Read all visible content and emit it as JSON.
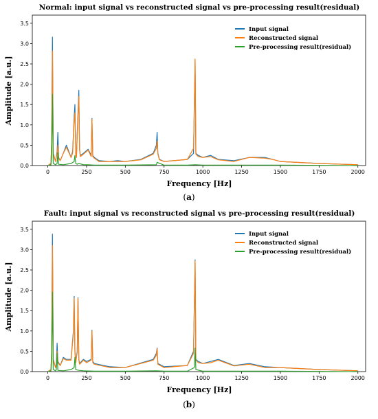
{
  "colors": {
    "input": "#1f77b4",
    "reconstructed": "#ff7f0e",
    "residual": "#2ca02c"
  },
  "chart_data": [
    {
      "type": "line",
      "title": "Normal: input signal vs reconstructed signal vs pre-processing result(residual)",
      "xlabel": "Frequency [Hz]",
      "ylabel": "Amplitude [a.u.]",
      "xlim": [
        -100,
        2050
      ],
      "ylim": [
        0,
        3.7
      ],
      "xticks": [
        0,
        250,
        500,
        750,
        1000,
        1250,
        1500,
        1750,
        2000
      ],
      "yticks": [
        0.0,
        0.5,
        1.0,
        1.5,
        2.0,
        2.5,
        3.0,
        3.5
      ],
      "legend_position": "top-right",
      "caption_letter": "a",
      "series": [
        {
          "name": "Input signal",
          "color": "#1f77b4",
          "x": [
            0,
            20,
            25,
            30,
            35,
            50,
            60,
            65,
            70,
            80,
            100,
            120,
            150,
            160,
            170,
            175,
            180,
            185,
            190,
            200,
            205,
            210,
            230,
            260,
            280,
            285,
            290,
            300,
            330,
            400,
            450,
            500,
            600,
            680,
            700,
            705,
            710,
            720,
            750,
            900,
            940,
            950,
            955,
            970,
            1000,
            1050,
            1100,
            1200,
            1300,
            1400,
            1450,
            1500,
            1750,
            2000
          ],
          "y": [
            0,
            0.05,
            0.6,
            3.16,
            0.3,
            0.1,
            0.35,
            0.82,
            0.2,
            0.12,
            0.3,
            0.5,
            0.2,
            0.35,
            1.2,
            1.5,
            0.3,
            0.2,
            0.8,
            1.85,
            0.4,
            0.25,
            0.3,
            0.4,
            0.25,
            1.16,
            0.25,
            0.2,
            0.12,
            0.1,
            0.12,
            0.1,
            0.15,
            0.3,
            0.5,
            0.82,
            0.3,
            0.15,
            0.1,
            0.15,
            0.3,
            2.6,
            0.3,
            0.25,
            0.2,
            0.25,
            0.15,
            0.12,
            0.2,
            0.2,
            0.15,
            0.1,
            0.05,
            0.02
          ]
        },
        {
          "name": "Reconstructed signal",
          "color": "#ff7f0e",
          "x": [
            0,
            20,
            25,
            30,
            35,
            50,
            60,
            65,
            70,
            80,
            100,
            120,
            150,
            160,
            170,
            175,
            180,
            185,
            190,
            200,
            205,
            210,
            230,
            260,
            280,
            285,
            290,
            300,
            330,
            400,
            450,
            500,
            600,
            680,
            700,
            705,
            710,
            720,
            750,
            900,
            940,
            950,
            955,
            970,
            1000,
            1050,
            1100,
            1200,
            1300,
            1400,
            1450,
            1500,
            1750,
            2000
          ],
          "y": [
            0,
            0.05,
            0.55,
            2.82,
            0.28,
            0.1,
            0.3,
            0.5,
            0.18,
            0.12,
            0.3,
            0.45,
            0.2,
            0.3,
            1.1,
            1.3,
            0.28,
            0.2,
            0.75,
            1.7,
            0.38,
            0.22,
            0.28,
            0.38,
            0.22,
            1.14,
            0.22,
            0.18,
            0.1,
            0.1,
            0.1,
            0.1,
            0.14,
            0.28,
            0.42,
            0.6,
            0.28,
            0.14,
            0.1,
            0.15,
            0.42,
            2.62,
            0.28,
            0.22,
            0.2,
            0.22,
            0.14,
            0.1,
            0.2,
            0.18,
            0.15,
            0.1,
            0.05,
            0.02
          ]
        },
        {
          "name": "Pre-processing result(residual)",
          "color": "#2ca02c",
          "x": [
            0,
            20,
            25,
            30,
            35,
            50,
            60,
            65,
            70,
            100,
            150,
            170,
            175,
            180,
            190,
            200,
            230,
            260,
            300,
            400,
            500,
            700,
            705,
            750,
            900,
            950,
            1000,
            1500,
            2000
          ],
          "y": [
            0,
            0.02,
            0.2,
            1.75,
            0.05,
            0.02,
            0.05,
            0.32,
            0.03,
            0.02,
            0.05,
            0.1,
            0.25,
            0.05,
            0.03,
            0.05,
            0.02,
            0.02,
            0.01,
            0.01,
            0.01,
            0.02,
            0.08,
            0.01,
            0.01,
            0.02,
            0.01,
            0.01,
            0.0
          ]
        }
      ]
    },
    {
      "type": "line",
      "title": "Fault: input signal vs reconstructed signal vs pre-processing result(residual)",
      "xlabel": "Frequency [Hz]",
      "ylabel": "Amplitude [a.u.]",
      "xlim": [
        -100,
        2050
      ],
      "ylim": [
        0,
        3.7
      ],
      "xticks": [
        0,
        250,
        500,
        750,
        1000,
        1250,
        1500,
        1750,
        2000
      ],
      "yticks": [
        0.0,
        0.5,
        1.0,
        1.5,
        2.0,
        2.5,
        3.0,
        3.5
      ],
      "legend_position": "top-right",
      "caption_letter": "b",
      "series": [
        {
          "name": "Input signal",
          "color": "#1f77b4",
          "x": [
            0,
            20,
            25,
            30,
            35,
            50,
            55,
            60,
            65,
            80,
            100,
            120,
            150,
            165,
            170,
            175,
            180,
            190,
            195,
            200,
            205,
            230,
            250,
            280,
            285,
            290,
            300,
            400,
            500,
            680,
            700,
            705,
            710,
            750,
            900,
            940,
            950,
            955,
            970,
            1000,
            1050,
            1100,
            1200,
            1300,
            1400,
            1500,
            1750,
            2000
          ],
          "y": [
            0,
            0.05,
            0.5,
            3.38,
            0.3,
            0.1,
            0.2,
            0.7,
            0.25,
            0.15,
            0.35,
            0.3,
            0.3,
            1.0,
            1.85,
            0.5,
            0.25,
            0.5,
            1.82,
            0.3,
            0.2,
            0.3,
            0.25,
            0.3,
            1.02,
            0.25,
            0.2,
            0.12,
            0.1,
            0.3,
            0.45,
            0.58,
            0.2,
            0.12,
            0.15,
            0.5,
            2.75,
            0.3,
            0.25,
            0.2,
            0.25,
            0.3,
            0.15,
            0.2,
            0.12,
            0.1,
            0.05,
            0.02
          ]
        },
        {
          "name": "Reconstructed signal",
          "color": "#ff7f0e",
          "x": [
            0,
            20,
            25,
            30,
            35,
            50,
            55,
            60,
            65,
            80,
            100,
            120,
            150,
            165,
            170,
            175,
            180,
            190,
            195,
            200,
            205,
            230,
            250,
            280,
            285,
            290,
            300,
            400,
            500,
            680,
            700,
            705,
            710,
            750,
            900,
            940,
            950,
            955,
            970,
            1000,
            1050,
            1100,
            1200,
            1300,
            1400,
            1500,
            1750,
            2000
          ],
          "y": [
            0,
            0.05,
            0.45,
            3.1,
            0.28,
            0.1,
            0.18,
            0.5,
            0.22,
            0.15,
            0.32,
            0.28,
            0.28,
            0.95,
            1.8,
            0.45,
            0.22,
            0.48,
            1.8,
            0.28,
            0.18,
            0.28,
            0.22,
            0.28,
            1.0,
            0.22,
            0.18,
            0.1,
            0.1,
            0.28,
            0.4,
            0.56,
            0.18,
            0.1,
            0.15,
            0.45,
            2.72,
            0.28,
            0.22,
            0.2,
            0.22,
            0.28,
            0.14,
            0.18,
            0.1,
            0.1,
            0.05,
            0.02
          ]
        },
        {
          "name": "Pre-processing result(residual)",
          "color": "#2ca02c",
          "x": [
            0,
            20,
            25,
            30,
            35,
            50,
            55,
            60,
            65,
            100,
            150,
            170,
            175,
            180,
            200,
            230,
            300,
            400,
            500,
            700,
            750,
            900,
            945,
            950,
            955,
            1000,
            1500,
            2000
          ],
          "y": [
            0,
            0.02,
            0.25,
            1.95,
            0.05,
            0.02,
            0.05,
            0.45,
            0.03,
            0.02,
            0.05,
            0.1,
            0.35,
            0.05,
            0.03,
            0.02,
            0.01,
            0.01,
            0.01,
            0.02,
            0.01,
            0.01,
            0.1,
            0.58,
            0.05,
            0.01,
            0.01,
            0.0
          ]
        }
      ]
    }
  ]
}
